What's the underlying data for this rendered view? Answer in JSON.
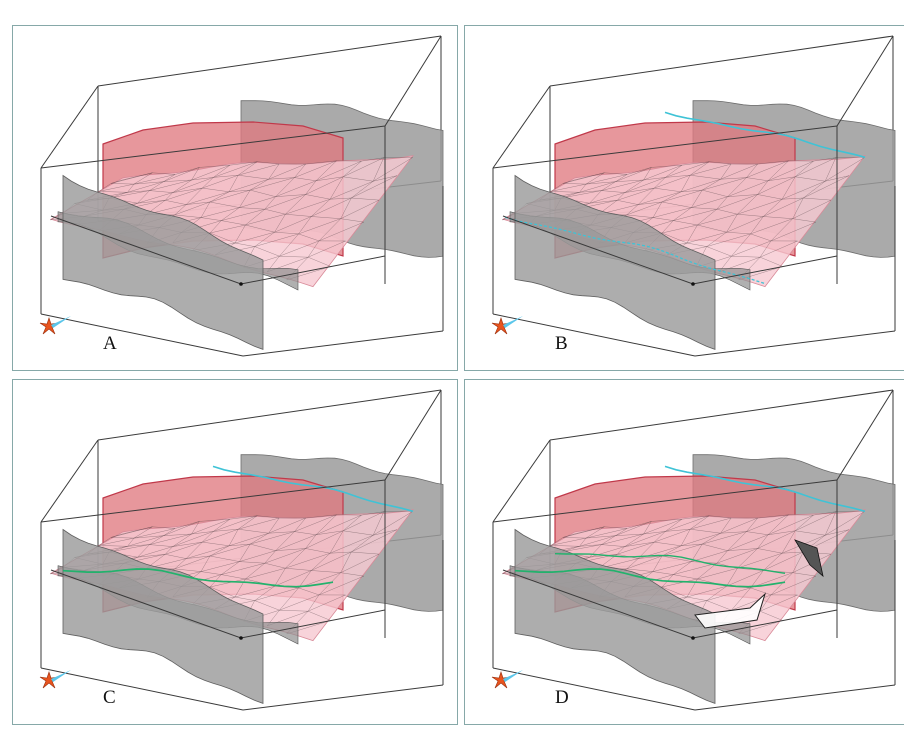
{
  "panels": [
    {
      "id": "A",
      "label": "A",
      "traces": [],
      "fault_cut": false
    },
    {
      "id": "B",
      "label": "B",
      "traces": [
        "cyan-back",
        "cyan-front"
      ],
      "fault_cut": false
    },
    {
      "id": "C",
      "label": "C",
      "traces": [
        "cyan-back",
        "green-front"
      ],
      "fault_cut": false
    },
    {
      "id": "D",
      "label": "D",
      "traces": [
        "cyan-back",
        "green-front",
        "green-inner"
      ],
      "fault_cut": true
    }
  ],
  "colors": {
    "frame": "#3a3a3a",
    "fault_gray": "#9b9b9b",
    "fault_red": "#e07a80",
    "horizon_pink": "#f6c9d2",
    "mesh": "#4a3a3e",
    "trace_cyan": "#3fc3d6",
    "trace_green": "#22b26c",
    "compass_orange": "#e8541e",
    "compass_blue": "#5bc6ea",
    "panel_border": "#86a8a8"
  },
  "icons": [
    "compass-icon"
  ]
}
